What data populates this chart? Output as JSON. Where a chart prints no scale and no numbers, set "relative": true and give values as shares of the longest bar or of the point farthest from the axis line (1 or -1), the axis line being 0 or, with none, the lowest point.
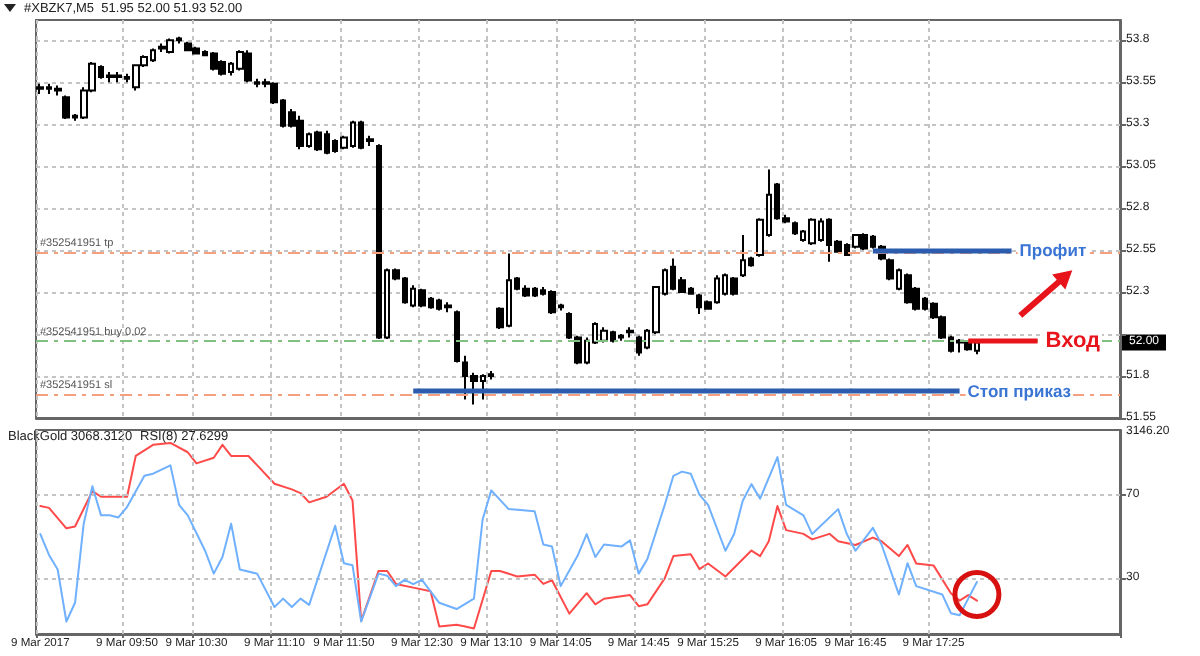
{
  "chart_data": [
    {
      "type": "candlestick",
      "title": "#XBZK7,M5  51.95 52.00 51.93 52.00",
      "tick_labels": "y",
      "grid": true,
      "categories": [
        null,
        null,
        null,
        null,
        null,
        null,
        null,
        null,
        null,
        null,
        null,
        null,
        null,
        null,
        null,
        null,
        null,
        null,
        null,
        null,
        null,
        null,
        null,
        null,
        null,
        null,
        null,
        null,
        null,
        null,
        null,
        null,
        null,
        null,
        null,
        null,
        null,
        null,
        null,
        null,
        null,
        null,
        null,
        null,
        null,
        null,
        null,
        null,
        null,
        null,
        null,
        null,
        null,
        null,
        null,
        null,
        null,
        null,
        null,
        null,
        null,
        null,
        null,
        null,
        null,
        null,
        null,
        null,
        null,
        null,
        null,
        null,
        null,
        null,
        null,
        null,
        null,
        null,
        null,
        null,
        null,
        null,
        null,
        null,
        null,
        null,
        null,
        null,
        null,
        null,
        null,
        null,
        null,
        null,
        null,
        null,
        null,
        null,
        null,
        null,
        null,
        null,
        null,
        null,
        null,
        null,
        null,
        null,
        null,
        null,
        null,
        null,
        null,
        null,
        null,
        null,
        null,
        null,
        null,
        null,
        null,
        null,
        null,
        null,
        null
      ],
      "ohlc": [
        [
          53.52,
          53.54,
          53.48,
          53.51
        ],
        [
          53.52,
          53.54,
          53.48,
          53.51
        ],
        [
          53.51,
          53.53,
          53.47,
          53.5
        ],
        [
          53.46,
          53.47,
          53.33,
          53.34
        ],
        [
          53.35,
          53.36,
          53.32,
          53.34
        ],
        [
          53.34,
          53.52,
          53.33,
          53.5
        ],
        [
          53.5,
          53.67,
          53.49,
          53.66
        ],
        [
          53.64,
          53.65,
          53.57,
          53.58
        ],
        [
          53.59,
          53.61,
          53.55,
          53.58
        ],
        [
          53.59,
          53.61,
          53.55,
          53.58
        ],
        [
          53.58,
          53.6,
          53.55,
          53.57
        ],
        [
          53.52,
          53.65,
          53.5,
          53.65
        ],
        [
          53.65,
          53.71,
          53.64,
          53.7
        ],
        [
          53.68,
          53.75,
          53.67,
          53.74
        ],
        [
          53.76,
          53.78,
          53.73,
          53.75
        ],
        [
          53.73,
          53.81,
          53.72,
          53.8
        ],
        [
          53.81,
          53.82,
          53.78,
          53.8
        ],
        [
          53.78,
          53.79,
          53.74,
          53.74
        ],
        [
          53.75,
          53.76,
          53.72,
          53.72
        ],
        [
          53.73,
          53.74,
          53.71,
          53.71
        ],
        [
          53.72,
          53.73,
          53.62,
          53.63
        ],
        [
          53.67,
          53.68,
          53.59,
          53.6
        ],
        [
          53.61,
          53.67,
          53.59,
          53.66
        ],
        [
          53.63,
          53.74,
          53.62,
          53.73
        ],
        [
          53.72,
          53.74,
          53.55,
          53.56
        ],
        [
          53.55,
          53.57,
          53.52,
          53.54
        ],
        [
          53.55,
          53.57,
          53.52,
          53.54
        ],
        [
          53.54,
          53.55,
          53.42,
          53.43
        ],
        [
          53.44,
          53.45,
          53.28,
          53.29
        ],
        [
          53.37,
          53.39,
          53.28,
          53.29
        ],
        [
          53.32,
          53.35,
          53.15,
          53.17
        ],
        [
          53.17,
          53.25,
          53.16,
          53.24
        ],
        [
          53.25,
          53.26,
          53.14,
          53.15
        ],
        [
          53.24,
          53.26,
          53.12,
          53.13
        ],
        [
          53.2,
          53.21,
          53.13,
          53.14
        ],
        [
          53.16,
          53.23,
          53.15,
          53.22
        ],
        [
          53.17,
          53.32,
          53.16,
          53.31
        ],
        [
          53.31,
          53.32,
          53.15,
          53.16
        ],
        [
          53.21,
          53.23,
          53.17,
          53.2
        ],
        [
          53.17,
          53.18,
          52.02,
          52.03
        ],
        [
          52.03,
          52.44,
          52.02,
          52.43
        ],
        [
          52.43,
          52.44,
          52.37,
          52.38
        ],
        [
          52.38,
          52.39,
          52.23,
          52.24
        ],
        [
          52.22,
          52.34,
          52.21,
          52.32
        ],
        [
          52.31,
          52.32,
          52.21,
          52.22
        ],
        [
          52.26,
          52.27,
          52.2,
          52.21
        ],
        [
          52.25,
          52.26,
          52.19,
          52.2
        ],
        [
          52.22,
          52.24,
          52.18,
          52.21
        ],
        [
          52.18,
          52.19,
          51.88,
          51.89
        ],
        [
          51.88,
          51.92,
          51.66,
          51.8
        ],
        [
          51.8,
          51.82,
          51.63,
          51.77
        ],
        [
          51.77,
          51.81,
          51.66,
          51.8
        ],
        [
          51.81,
          51.83,
          51.78,
          51.8
        ],
        [
          52.2,
          52.21,
          52.08,
          52.09
        ],
        [
          52.1,
          52.53,
          52.09,
          52.37
        ],
        [
          52.38,
          52.39,
          52.31,
          52.32
        ],
        [
          52.32,
          52.34,
          52.27,
          52.28
        ],
        [
          52.32,
          52.33,
          52.27,
          52.28
        ],
        [
          52.31,
          52.33,
          52.28,
          52.29
        ],
        [
          52.3,
          52.31,
          52.17,
          52.18
        ],
        [
          52.22,
          52.23,
          52.19,
          52.21
        ],
        [
          52.17,
          52.18,
          52.02,
          52.03
        ],
        [
          52.03,
          52.04,
          51.87,
          51.88
        ],
        [
          51.88,
          52.03,
          51.87,
          52.01
        ],
        [
          52.0,
          52.12,
          51.99,
          52.11
        ],
        [
          52.01,
          52.09,
          52.0,
          52.07
        ],
        [
          52.06,
          52.07,
          52.0,
          52.01
        ],
        [
          52.04,
          52.05,
          52.01,
          52.03
        ],
        [
          52.07,
          52.09,
          52.03,
          52.06
        ],
        [
          52.03,
          52.04,
          51.92,
          51.94
        ],
        [
          51.97,
          52.08,
          51.96,
          52.07
        ],
        [
          52.06,
          52.33,
          52.05,
          52.33
        ],
        [
          52.29,
          52.44,
          52.28,
          52.43
        ],
        [
          52.45,
          52.5,
          52.31,
          52.32
        ],
        [
          52.37,
          52.39,
          52.3,
          52.3
        ],
        [
          52.32,
          52.33,
          52.29,
          52.29
        ],
        [
          52.28,
          52.29,
          52.17,
          52.21
        ],
        [
          52.24,
          52.25,
          52.2,
          52.2
        ],
        [
          52.24,
          52.4,
          52.23,
          52.38
        ],
        [
          52.29,
          52.41,
          52.28,
          52.4
        ],
        [
          52.38,
          52.39,
          52.28,
          52.29
        ],
        [
          52.4,
          52.64,
          52.39,
          52.49
        ],
        [
          52.5,
          52.51,
          52.45,
          52.46
        ],
        [
          52.52,
          52.74,
          52.51,
          52.73
        ],
        [
          52.64,
          53.03,
          52.63,
          52.88
        ],
        [
          52.94,
          52.95,
          52.73,
          52.74
        ],
        [
          52.74,
          52.76,
          52.71,
          52.72
        ],
        [
          52.71,
          52.72,
          52.64,
          52.65
        ],
        [
          52.61,
          52.67,
          52.6,
          52.66
        ],
        [
          52.59,
          52.74,
          52.58,
          52.73
        ],
        [
          52.61,
          52.74,
          52.6,
          52.72
        ],
        [
          52.73,
          52.74,
          52.48,
          52.58
        ],
        [
          52.6,
          52.61,
          52.54,
          52.54
        ],
        [
          52.58,
          52.59,
          52.52,
          52.52
        ],
        [
          52.57,
          52.64,
          52.56,
          52.64
        ],
        [
          52.64,
          52.65,
          52.55,
          52.56
        ],
        [
          52.63,
          52.64,
          52.56,
          52.57
        ],
        [
          52.57,
          52.58,
          52.49,
          52.5
        ],
        [
          52.49,
          52.5,
          52.37,
          52.38
        ],
        [
          52.32,
          52.44,
          52.31,
          52.43
        ],
        [
          52.4,
          52.41,
          52.23,
          52.24
        ],
        [
          52.32,
          52.33,
          52.19,
          52.2
        ],
        [
          52.26,
          52.27,
          52.19,
          52.2
        ],
        [
          52.23,
          52.24,
          52.14,
          52.15
        ],
        [
          52.15,
          52.16,
          52.02,
          52.03
        ],
        [
          52.03,
          52.04,
          51.94,
          51.95
        ],
        [
          52.01,
          52.02,
          51.94,
          52.0
        ],
        [
          52.0,
          52.01,
          51.95,
          51.96
        ],
        [
          51.95,
          52.0,
          51.93,
          52.0
        ],
        null,
        null,
        null,
        null,
        null,
        null,
        null,
        null,
        null,
        null,
        null,
        null,
        null,
        null,
        null,
        null
      ],
      "ylim": [
        51.55,
        53.92
      ],
      "yticks": [
        51.55,
        51.8,
        {
          "value": 52.05,
          "label": null
        },
        52.3,
        52.55,
        52.8,
        53.05,
        53.3,
        53.55,
        53.8
      ],
      "ref_lines": [
        {
          "axis": "y",
          "value": 52.54,
          "label": "#352541951 tp",
          "color": "#f4a080",
          "line_style": "dashed"
        },
        {
          "axis": "y",
          "value": 52.01,
          "label": "#352541951 buy 0.02",
          "color": "#80c080",
          "line_style": "dashed"
        },
        {
          "axis": "y",
          "value": 51.69,
          "label": "#352541951 sl",
          "color": "#f4a080",
          "line_style": "dashed"
        }
      ],
      "annotations": [
        {
          "text": "Профит",
          "y": 52.55
        },
        {
          "text": "Вход",
          "y": 52.01
        },
        {
          "text": "Стоп приказ",
          "y": 51.71
        },
        {
          "text": "52.00",
          "y": 52.0
        }
      ]
    },
    {
      "type": "line",
      "title": "BlackGold 3068.3120",
      "relative": true,
      "tick_labels": false,
      "categories": [
        null,
        null,
        null,
        null,
        null,
        null,
        null,
        null,
        null,
        null,
        null,
        null,
        null,
        null,
        null,
        null,
        null,
        null,
        null,
        null,
        null,
        null,
        null,
        null,
        null,
        null,
        null,
        null,
        null,
        null,
        null,
        null,
        null,
        null,
        null,
        null,
        null,
        null,
        null,
        null,
        null,
        null,
        null,
        null,
        null,
        null,
        null,
        null,
        null,
        null,
        null,
        null,
        null,
        null,
        null,
        null,
        null,
        null,
        null,
        null,
        null,
        null,
        null,
        null,
        null,
        null,
        null,
        null,
        null,
        null,
        null,
        null,
        null,
        null,
        null,
        null,
        null,
        null,
        null,
        null,
        null,
        null,
        null,
        null,
        null,
        null,
        null,
        null,
        null,
        null,
        null,
        null,
        null,
        null,
        null,
        null,
        null,
        null,
        null,
        null,
        null,
        null,
        null,
        null,
        null,
        null,
        null,
        null,
        null,
        null,
        null,
        null,
        null,
        null,
        null,
        null,
        null,
        null,
        null,
        null,
        null,
        null,
        null,
        null,
        null
      ],
      "series": [
        {
          "color": "#ff4a4a",
          "values": [
            0.66,
            0.65,
            null,
            0.54,
            0.55,
            null,
            0.74,
            0.71,
            null,
            null,
            0.71,
            0.93,
            null,
            0.99,
            null,
            1,
            null,
            0.95,
            0.89,
            null,
            0.92,
            0.99,
            0.93,
            null,
            0.93,
            null,
            null,
            0.78,
            null,
            0.75,
            0.73,
            0.68,
            null,
            0.71,
            null,
            0.78,
            0.69,
            0.04,
            null,
            0.31,
            0.31,
            0.24,
            null,
            0.22,
            null,
            0.2,
            0.01,
            null,
            0.02,
            0.01,
            0,
            null,
            0.31,
            0.31,
            null,
            0.28,
            null,
            0.29,
            0.24,
            0.26,
            null,
            0.08,
            null,
            0.19,
            0.13,
            0.16,
            null,
            null,
            0.18,
            0.12,
            0.13,
            null,
            0.27,
            0.39,
            null,
            0.4,
            0.32,
            0.35,
            null,
            0.28,
            null,
            null,
            0.42,
            0.39,
            0.47,
            0.66,
            0.53,
            null,
            0.51,
            0.48,
            null,
            0.51,
            0.47,
            null,
            0.45,
            null,
            0.49,
            0.47,
            null,
            0.39,
            0.45,
            0.35,
            null,
            0.34,
            null,
            0.19,
            0.15,
            0.18,
            0.15,
            null,
            null,
            null,
            null,
            null,
            null,
            null,
            null,
            null,
            null,
            null,
            null,
            null,
            null,
            null,
            null
          ]
        }
      ],
      "annotations": [
        "3146.20"
      ]
    },
    {
      "type": "line",
      "title": "RSI(8) 27.6299",
      "grid": true,
      "categories": [
        "9 Mar 2017",
        null,
        null,
        null,
        null,
        null,
        null,
        null,
        null,
        null,
        "9 Mar 09:50",
        null,
        null,
        null,
        null,
        null,
        null,
        null,
        "9 Mar 10:30",
        null,
        null,
        null,
        null,
        null,
        null,
        null,
        null,
        "9 Mar 11:10",
        null,
        null,
        null,
        null,
        null,
        null,
        null,
        "9 Mar 11:50",
        null,
        null,
        null,
        null,
        null,
        null,
        null,
        null,
        "9 Mar 12:30",
        null,
        null,
        null,
        null,
        null,
        null,
        null,
        "9 Mar 13:10",
        null,
        null,
        null,
        null,
        null,
        null,
        null,
        "9 Mar 14:05",
        null,
        null,
        null,
        null,
        null,
        null,
        null,
        null,
        "9 Mar 14:45",
        null,
        null,
        null,
        null,
        null,
        null,
        null,
        "9 Mar 15:25",
        null,
        null,
        null,
        null,
        null,
        null,
        null,
        null,
        "9 Mar 16:05",
        null,
        null,
        null,
        null,
        null,
        null,
        null,
        "9 Mar 16:45",
        null,
        null,
        null,
        null,
        null,
        null,
        null,
        null,
        "9 Mar 17:25",
        null,
        null,
        null,
        null,
        null,
        null,
        null,
        null,
        null,
        null,
        null,
        null,
        null,
        null,
        null,
        null,
        null,
        null,
        null,
        null,
        null
      ],
      "series": [
        {
          "color": "#6fb0ff",
          "values": [
            51,
            41,
            34,
            9,
            18,
            56,
            74,
            60,
            60,
            59,
            64,
            null,
            79,
            80,
            null,
            84,
            65,
            60,
            null,
            43,
            32,
            40,
            56,
            34,
            null,
            32,
            null,
            16,
            20,
            16,
            20,
            17,
            null,
            null,
            55,
            37,
            36,
            9,
            null,
            32,
            31,
            26,
            29,
            27,
            29,
            null,
            18,
            null,
            15,
            null,
            20,
            58,
            72,
            null,
            63,
            null,
            null,
            62,
            46,
            45,
            26,
            null,
            41,
            51,
            40,
            46,
            null,
            45,
            48,
            32,
            39,
            null,
            65,
            79,
            81,
            80,
            70,
            65,
            null,
            43,
            51,
            67,
            75,
            68,
            null,
            88,
            65,
            null,
            60,
            51,
            null,
            null,
            63,
            51,
            43,
            null,
            54,
            46,
            null,
            22,
            37,
            26,
            null,
            null,
            22,
            13,
            12,
            20,
            28,
            null,
            null,
            null,
            null,
            null,
            null,
            null,
            null,
            null,
            null,
            null,
            null,
            null,
            null,
            null,
            null
          ]
        }
      ],
      "ylim": [
        3,
        101
      ],
      "yticks": [
        30,
        70
      ]
    }
  ]
}
